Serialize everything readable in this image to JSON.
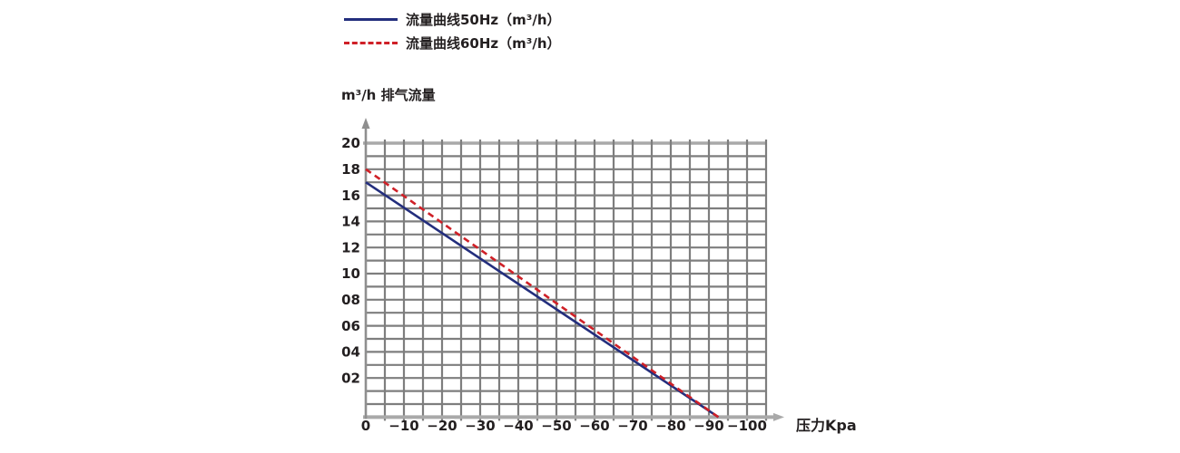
{
  "legend": {
    "items": [
      {
        "label": "流量曲线50Hz（m³/h）",
        "color": "#232e7d",
        "style": "solid"
      },
      {
        "label": "流量曲线60Hz（m³/h）",
        "color": "#cf2027",
        "style": "dashed"
      }
    ]
  },
  "chart_data": {
    "type": "line",
    "ylabel": "m³/h 排气流量",
    "xlabel": "压力Kpa",
    "x_ticks": {
      "values": [
        0,
        -10,
        -20,
        -30,
        -40,
        -50,
        -60,
        -70,
        -80,
        -90,
        -100
      ],
      "labels": [
        "0",
        "−10",
        "−20",
        "−30",
        "−40",
        "−50",
        "−60",
        "−70",
        "−80",
        "−90",
        "−100"
      ]
    },
    "y_ticks": {
      "values": [
        20,
        18,
        16,
        14,
        12,
        10,
        8,
        6,
        4,
        2
      ],
      "labels": [
        "20",
        "18",
        "16",
        "14",
        "12",
        "10",
        "08",
        "06",
        "04",
        "02"
      ]
    },
    "xlim": [
      0,
      -105
    ],
    "ylim": [
      -1,
      21
    ],
    "grid": {
      "on": true,
      "x_step_kpa": 5,
      "y_step": 1
    },
    "series": [
      {
        "name": "流量曲线50Hz（m³/h）",
        "color": "#232e7d",
        "style": "solid",
        "points": [
          [
            0,
            17
          ],
          [
            -92.5,
            -1
          ]
        ]
      },
      {
        "name": "流量曲线60Hz（m³/h）",
        "color": "#cf2027",
        "style": "dashed",
        "points": [
          [
            0,
            18
          ],
          [
            -92.5,
            -1
          ]
        ]
      }
    ],
    "colors": {
      "grid": "#7e7e7e",
      "grid_boundary": "#a9a9a9",
      "axis": "#8f8f8f",
      "text": "#231f20"
    }
  }
}
